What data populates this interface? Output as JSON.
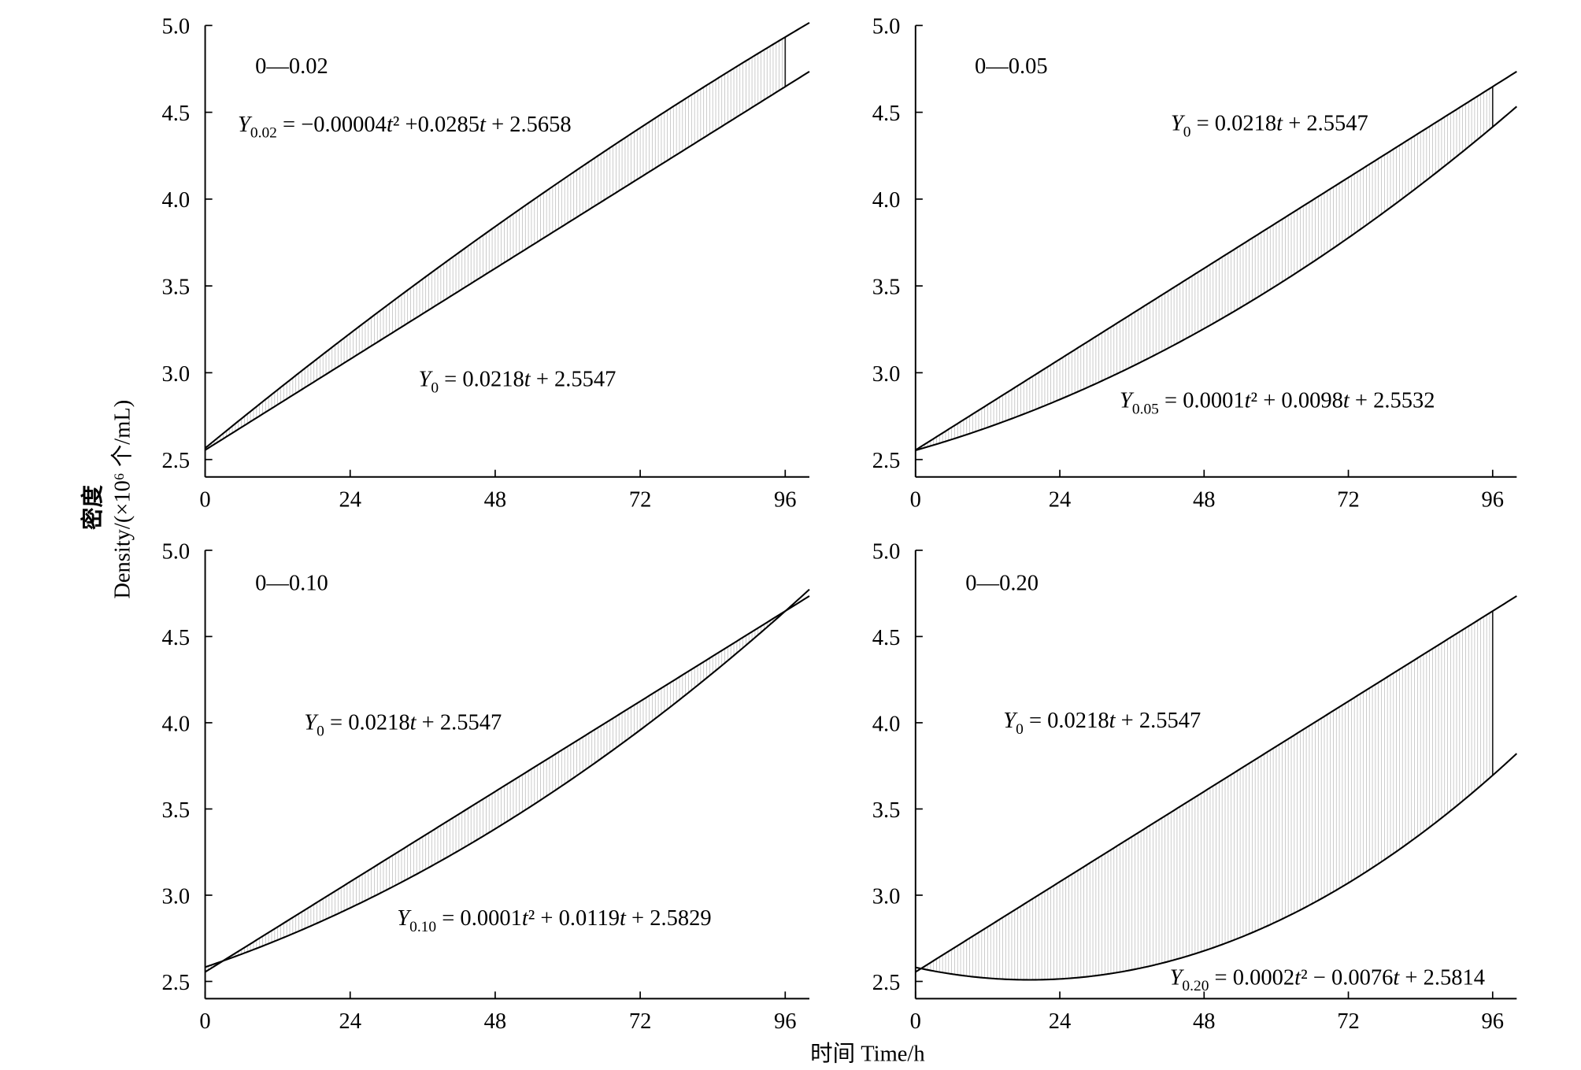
{
  "figure": {
    "ylabel_cn": "密度",
    "ylabel": "Density/(×10⁶ 个/mL)",
    "xlabel": "时间 Time/h",
    "line_color": "#000000",
    "hatch_color": "#bdbdbd",
    "boundary_color": "#222222"
  },
  "chart_data": [
    {
      "type": "line",
      "panel_label": "0—0.02",
      "xlim": [
        0,
        100
      ],
      "ylim": [
        2.4,
        5.0
      ],
      "xticks": [
        0,
        24,
        48,
        72,
        96
      ],
      "xtick_labels": [
        "0",
        "24",
        "48",
        "72",
        "96"
      ],
      "yticks": [
        2.5,
        3.0,
        3.5,
        4.0,
        4.5,
        5.0
      ],
      "ytick_labels": [
        "2.5",
        "3.0",
        "3.5",
        "4.0",
        "4.5",
        "5.0"
      ],
      "grid": false,
      "curve_x_range": [
        0,
        100
      ],
      "shaded_x_range": [
        0,
        96
      ],
      "series": [
        {
          "symbol": "Y",
          "subscript": "0.02",
          "equation": "= −0.00004t² +0.0285t + 2.5658",
          "coefficients": {
            "t2": -4e-05,
            "t": 0.0285,
            "const": 2.5658
          }
        },
        {
          "symbol": "Y",
          "subscript": "0",
          "equation": "= 0.0218t + 2.5547",
          "coefficients": {
            "t2": 0,
            "t": 0.0218,
            "const": 2.5547
          }
        }
      ]
    },
    {
      "type": "line",
      "panel_label": "0—0.05",
      "xlim": [
        0,
        100
      ],
      "ylim": [
        2.4,
        5.0
      ],
      "xticks": [
        0,
        24,
        48,
        72,
        96
      ],
      "xtick_labels": [
        "0",
        "24",
        "48",
        "72",
        "96"
      ],
      "yticks": [
        2.5,
        3.0,
        3.5,
        4.0,
        4.5,
        5.0
      ],
      "ytick_labels": [
        "2.5",
        "3.0",
        "3.5",
        "4.0",
        "4.5",
        "5.0"
      ],
      "grid": false,
      "curve_x_range": [
        0,
        100
      ],
      "shaded_x_range": [
        0,
        96
      ],
      "series": [
        {
          "symbol": "Y",
          "subscript": "0.05",
          "equation": "= 0.0001t² + 0.0098t + 2.5532",
          "coefficients": {
            "t2": 0.0001,
            "t": 0.0098,
            "const": 2.5532
          }
        },
        {
          "symbol": "Y",
          "subscript": "0",
          "equation": "= 0.0218t + 2.5547",
          "coefficients": {
            "t2": 0,
            "t": 0.0218,
            "const": 2.5547
          }
        }
      ]
    },
    {
      "type": "line",
      "panel_label": "0—0.10",
      "xlim": [
        0,
        100
      ],
      "ylim": [
        2.4,
        5.0
      ],
      "xticks": [
        0,
        24,
        48,
        72,
        96
      ],
      "xtick_labels": [
        "0",
        "24",
        "48",
        "72",
        "96"
      ],
      "yticks": [
        2.5,
        3.0,
        3.5,
        4.0,
        4.5,
        5.0
      ],
      "ytick_labels": [
        "2.5",
        "3.0",
        "3.5",
        "4.0",
        "4.5",
        "5.0"
      ],
      "grid": false,
      "curve_x_range": [
        0,
        100
      ],
      "shaded_x_range": [
        0,
        96
      ],
      "series": [
        {
          "symbol": "Y",
          "subscript": "0.10",
          "equation": "= 0.0001t² + 0.0119t + 2.5829",
          "coefficients": {
            "t2": 0.0001,
            "t": 0.0119,
            "const": 2.5829
          }
        },
        {
          "symbol": "Y",
          "subscript": "0",
          "equation": "= 0.0218t + 2.5547",
          "coefficients": {
            "t2": 0,
            "t": 0.0218,
            "const": 2.5547
          }
        }
      ]
    },
    {
      "type": "line",
      "panel_label": "0—0.20",
      "xlim": [
        0,
        100
      ],
      "ylim": [
        2.4,
        5.0
      ],
      "xticks": [
        0,
        24,
        48,
        72,
        96
      ],
      "xtick_labels": [
        "0",
        "24",
        "48",
        "72",
        "96"
      ],
      "yticks": [
        2.5,
        3.0,
        3.5,
        4.0,
        4.5,
        5.0
      ],
      "ytick_labels": [
        "2.5",
        "3.0",
        "3.5",
        "4.0",
        "4.5",
        "5.0"
      ],
      "grid": false,
      "curve_x_range": [
        0,
        100
      ],
      "shaded_x_range": [
        0,
        96
      ],
      "series": [
        {
          "symbol": "Y",
          "subscript": "0.20",
          "equation": "= 0.0002t² − 0.0076t + 2.5814",
          "coefficients": {
            "t2": 0.0002,
            "t": -0.0076,
            "const": 2.5814
          }
        },
        {
          "symbol": "Y",
          "subscript": "0",
          "equation": "= 0.0218t + 2.5547",
          "coefficients": {
            "t2": 0,
            "t": 0.0218,
            "const": 2.5547
          }
        }
      ]
    }
  ]
}
